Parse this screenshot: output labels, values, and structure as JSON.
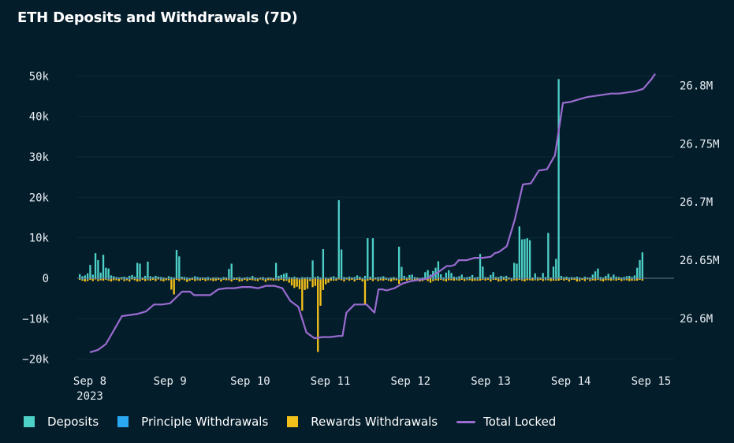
{
  "chart_data": {
    "type": "bar",
    "title": "ETH Deposits and Withdrawals (7D)",
    "x_tick_labels": [
      "Sep 8",
      "Sep 9",
      "Sep 10",
      "Sep 11",
      "Sep 12",
      "Sep 13",
      "Sep 14",
      "Sep 15"
    ],
    "x_tick_sublabel": "2023",
    "y_left": {
      "ticks": [
        "50k",
        "40k",
        "30k",
        "20k",
        "10k",
        "0",
        "−10k",
        "−20k"
      ],
      "tick_values": [
        50000,
        40000,
        30000,
        20000,
        10000,
        0,
        -10000,
        -20000
      ],
      "ylim": [
        -22000,
        52000
      ]
    },
    "y_right": {
      "ticks": [
        "26.8M",
        "26.75M",
        "26.7M",
        "26.65M",
        "26.6M"
      ],
      "tick_values": [
        26800000,
        26750000,
        26700000,
        26650000,
        26600000
      ],
      "ylim": [
        26550000,
        26830000
      ]
    },
    "grid": true,
    "legend_position": "bottom-left",
    "colors": {
      "deposits": "#4dd0c6",
      "principle": "#2aa8f2",
      "rewards": "#f2c01a",
      "total": "#9a6cd0",
      "zero_line": "#6b7d88",
      "grid": "#0b2a3b"
    },
    "series": [
      {
        "name": "Deposits",
        "kind": "bar",
        "values": [
          1000,
          500,
          700,
          1200,
          3300,
          900,
          6200,
          4500,
          1400,
          5800,
          2600,
          2400,
          700,
          500,
          300,
          200,
          300,
          400,
          200,
          600,
          800,
          400,
          3800,
          3600,
          200,
          600,
          4100,
          500,
          300,
          600,
          400,
          300,
          200,
          100,
          500,
          300,
          200,
          7000,
          5400,
          400,
          300,
          200,
          100,
          200,
          500,
          300,
          200,
          200,
          200,
          300,
          100,
          200,
          200,
          200,
          100,
          300,
          200,
          2300,
          3600,
          200,
          200,
          300,
          100,
          200,
          300,
          200,
          600,
          200,
          100,
          200,
          300,
          100,
          200,
          200,
          100,
          3800,
          600,
          800,
          1100,
          1300,
          300,
          200,
          400,
          200,
          100,
          300,
          200,
          300,
          200,
          4400,
          300,
          500,
          200,
          7200,
          200,
          100,
          300,
          500,
          200,
          19300,
          7100,
          300,
          200,
          400,
          200,
          300,
          700,
          400,
          100,
          600,
          9900,
          400,
          9900,
          200,
          300,
          300,
          500,
          200,
          100,
          200,
          300,
          100,
          7800,
          2800,
          600,
          200,
          800,
          900,
          300,
          200,
          100,
          200,
          1500,
          2000,
          900,
          1800,
          2600,
          4200,
          1000,
          200,
          1400,
          2000,
          1300,
          400,
          300,
          500,
          900,
          200,
          300,
          400,
          800,
          200,
          300,
          6000,
          2900,
          300,
          200,
          800,
          1500,
          300,
          300,
          600,
          400,
          600,
          200,
          100,
          3800,
          3600,
          12800,
          9600,
          9700,
          9900,
          9400,
          200,
          1200,
          300,
          200,
          1300,
          300,
          11200,
          200,
          2900,
          4800,
          49200,
          600,
          300,
          400,
          200,
          300,
          200,
          400,
          200,
          100,
          400,
          200,
          200,
          900,
          1700,
          2400,
          300,
          200,
          600,
          1100,
          300,
          900,
          400,
          300,
          200,
          300,
          500,
          600,
          300,
          700,
          2600,
          4500,
          6400
        ]
      },
      {
        "name": "Principle Withdrawals",
        "kind": "bar",
        "values": [
          -200,
          -300,
          -200,
          -300,
          -100,
          -200,
          -100,
          -300,
          -200,
          -100,
          -200,
          -300,
          -200,
          -100,
          -200,
          -200,
          -100,
          -300,
          -200,
          -300,
          -100,
          -200,
          -200,
          -300,
          -100,
          -200,
          -300,
          -200,
          -100,
          -200,
          -100,
          -300,
          -200,
          -100,
          -200,
          -300,
          -200,
          -100,
          -200,
          -100,
          -200,
          -300,
          -200,
          -100,
          -200,
          -300,
          -200,
          -100,
          -200,
          -300,
          -200,
          -100,
          -200,
          -100,
          -300,
          -200,
          -100,
          -200,
          -300,
          -200,
          -100,
          -200,
          -300,
          -100,
          -200,
          -200,
          -100,
          -300,
          -200,
          -100,
          -200,
          -300,
          -100,
          -200,
          -100,
          -300,
          -200,
          -100,
          -200,
          -300,
          -200,
          -100,
          -200,
          -100,
          -300,
          -200,
          -100,
          -200,
          -300,
          -200,
          -100,
          -200,
          -300,
          -100,
          -200,
          -200,
          -100,
          -300,
          -200,
          -100,
          -200,
          -300,
          -100,
          -200,
          -100,
          -300,
          -200,
          -100,
          -200,
          -300,
          -200,
          -100,
          -200,
          -100,
          -300,
          -200,
          -100,
          -200,
          -300,
          -200,
          -100,
          -200,
          -300,
          -100,
          -200,
          -200,
          -100,
          -300,
          -200,
          -100,
          -200,
          -300,
          -100,
          -200,
          -100,
          -300,
          -200,
          -100,
          -200,
          -300,
          -200,
          -100,
          -200,
          -100,
          -300,
          -200,
          -100,
          -200,
          -300,
          -200,
          -100,
          -200,
          -300,
          -100,
          -200,
          -200,
          -100,
          -300,
          -200,
          -100,
          -200,
          -300,
          -100,
          -200,
          -100,
          -300,
          -200,
          -100,
          -200,
          -300,
          -200,
          -100,
          -200,
          -100,
          -300,
          -200,
          -100,
          -200,
          -300,
          -200,
          -100,
          -200,
          -300,
          -100,
          -200,
          -200,
          -100,
          -300,
          -200,
          -100,
          -200,
          -300,
          -100,
          -200,
          -100,
          -300,
          -200,
          -100,
          -200,
          -300,
          -200,
          -100,
          -200,
          -100,
          -300,
          -200,
          -100,
          -200,
          -300,
          -200,
          -100,
          -200,
          -300,
          -100,
          -200,
          -200,
          -100,
          -300,
          -200,
          -100,
          -200,
          -300
        ]
      },
      {
        "name": "Rewards Withdrawals",
        "kind": "bar",
        "values": [
          -200,
          -300,
          -600,
          -400,
          -300,
          -500,
          -200,
          -400,
          -300,
          -500,
          -200,
          -300,
          -600,
          -400,
          -300,
          -500,
          -200,
          -400,
          -300,
          -500,
          -200,
          -300,
          -600,
          -400,
          -300,
          -500,
          -200,
          -400,
          -300,
          -500,
          -200,
          -300,
          -600,
          -400,
          -300,
          -2500,
          -3800,
          -300,
          -500,
          -200,
          -300,
          -600,
          -400,
          -300,
          -500,
          -200,
          -400,
          -300,
          -500,
          -200,
          -300,
          -600,
          -400,
          -300,
          -500,
          -200,
          -400,
          -300,
          -500,
          -200,
          -300,
          -600,
          -400,
          -300,
          -500,
          -200,
          -400,
          -300,
          -500,
          -200,
          -300,
          -600,
          -400,
          -300,
          -500,
          -200,
          -400,
          -300,
          -500,
          -300,
          -900,
          -1700,
          -2200,
          -2000,
          -2400,
          -7800,
          -2800,
          -2400,
          -400,
          -2000,
          -1800,
          -18000,
          -6500,
          -2800,
          -1300,
          -900,
          -500,
          -300,
          -400,
          -200,
          -300,
          -500,
          -200,
          -400,
          -300,
          -500,
          -200,
          -300,
          -600,
          -6100,
          -400,
          -300,
          -500,
          -200,
          -400,
          -300,
          -500,
          -200,
          -300,
          -600,
          -400,
          -300,
          -1100,
          -500,
          -200,
          -400,
          -300,
          -500,
          -200,
          -300,
          -600,
          -400,
          -300,
          -500,
          -1000,
          -400,
          -300,
          -500,
          -200,
          -300,
          -600,
          -400,
          -300,
          -500,
          -200,
          -400,
          -300,
          -500,
          -200,
          -300,
          -600,
          -400,
          -300,
          -500,
          -200,
          -400,
          -300,
          -500,
          -200,
          -300,
          -600,
          -400,
          -300,
          -500,
          -200,
          -400,
          -300,
          -500,
          -200,
          -300,
          -600,
          -400,
          -300,
          -500,
          -200,
          -400,
          -300,
          -500,
          -200,
          -300,
          -600,
          -400,
          -300,
          -500,
          -200,
          -400,
          -300,
          -500,
          -200,
          -300,
          -600,
          -400,
          -300,
          -500,
          -200,
          -400,
          -300,
          -500,
          -200,
          -300,
          -600,
          -400,
          -300,
          -500,
          -200,
          -400,
          -300,
          -500,
          -200,
          -300,
          -600,
          -400,
          -300,
          -500,
          -200,
          -400,
          -300,
          -500,
          -200,
          -300,
          -600
        ]
      },
      {
        "name": "Total Locked",
        "kind": "line",
        "axis": "right",
        "x_days": [
          0,
          0.1,
          0.2,
          0.3,
          0.4,
          0.5,
          0.6,
          0.7,
          0.8,
          0.9,
          1.0,
          1.15,
          1.25,
          1.3,
          1.4,
          1.5,
          1.6,
          1.7,
          1.8,
          1.9,
          2.0,
          2.1,
          2.2,
          2.3,
          2.4,
          2.5,
          2.6,
          2.7,
          2.8,
          2.9,
          3.0,
          3.1,
          3.15,
          3.2,
          3.3,
          3.4,
          3.45,
          3.55,
          3.6,
          3.65,
          3.7,
          3.8,
          3.9,
          4.0,
          4.1,
          4.2,
          4.25,
          4.3,
          4.35,
          4.45,
          4.5,
          4.55,
          4.6,
          4.7,
          4.8,
          4.9,
          5.0,
          5.05,
          5.1,
          5.2,
          5.3,
          5.4,
          5.5,
          5.6,
          5.7,
          5.8,
          5.9,
          6.0,
          6.05,
          6.1,
          6.2,
          6.3,
          6.4,
          6.5,
          6.6,
          6.7,
          6.8,
          6.9,
          7.0,
          7.05
        ],
        "values": [
          26571000,
          26573000,
          26578000,
          26590000,
          26602000,
          26603000,
          26604000,
          26606000,
          26612000,
          26612000,
          26613000,
          26623000,
          26623000,
          26620000,
          26620000,
          26620000,
          26625000,
          26626000,
          26626000,
          26627000,
          26627000,
          26626000,
          26628000,
          26628000,
          26626000,
          26615000,
          26610000,
          26588000,
          26583000,
          26584000,
          26584000,
          26585000,
          26585000,
          26605000,
          26612000,
          26612000,
          26612000,
          26605000,
          26625000,
          26625000,
          26624000,
          26626000,
          26630000,
          26632000,
          26633000,
          26634000,
          26636000,
          26638000,
          26640000,
          26645000,
          26645000,
          26646000,
          26650000,
          26650000,
          26652000,
          26652000,
          26653000,
          26656000,
          26657000,
          26662000,
          26685000,
          26715000,
          26716000,
          26727000,
          26728000,
          26740000,
          26785000,
          26786000,
          26787000,
          26788000,
          26790000,
          26791000,
          26792000,
          26793000,
          26793000,
          26794000,
          26795000,
          26797000,
          26805000,
          26810000
        ]
      }
    ]
  }
}
